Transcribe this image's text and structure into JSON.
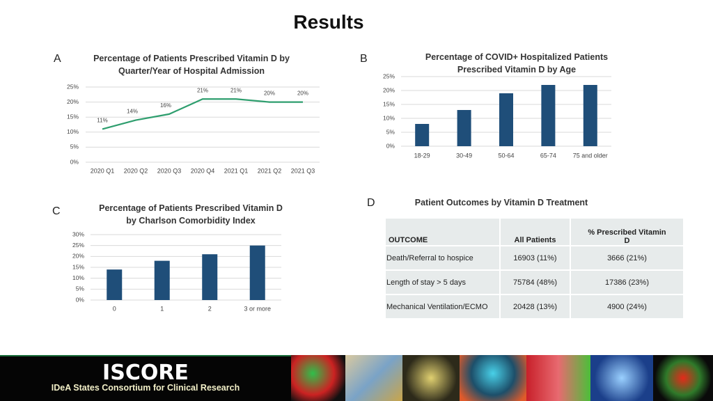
{
  "title": "Results",
  "panel_labels": [
    "A",
    "B",
    "C",
    "D"
  ],
  "chart_data": [
    {
      "type": "line",
      "title": "Percentage of Patients Prescribed Vitamin D by Quarter/Year of Hospital Admission",
      "categories": [
        "2020 Q1",
        "2020 Q2",
        "2020 Q3",
        "2020 Q4",
        "2021 Q1",
        "2021 Q2",
        "2021 Q3"
      ],
      "values": [
        11,
        14,
        16,
        21,
        21,
        20,
        20
      ],
      "value_labels": [
        "11%",
        "14%",
        "16%",
        "21%",
        "21%",
        "20%",
        "20%"
      ],
      "color": "#2e9e6e",
      "ylim": [
        0,
        25
      ],
      "yticks": [
        {
          "value": 0,
          "label": "0%"
        },
        {
          "value": 5,
          "label": "5%"
        },
        {
          "value": 10,
          "label": "10%"
        },
        {
          "value": 15,
          "label": "15%"
        },
        {
          "value": 20,
          "label": "20%"
        },
        {
          "value": 25,
          "label": "25%"
        }
      ],
      "grid": true
    },
    {
      "type": "bar",
      "title": "Percentage of COVID+ Hospitalized Patients Prescribed Vitamin D by Age",
      "categories": [
        "18-29",
        "30-49",
        "50-64",
        "65-74",
        "75 and older"
      ],
      "values": [
        8,
        13,
        19,
        22,
        22
      ],
      "color": "#1f4e79",
      "ylim": [
        0,
        25
      ],
      "yticks": [
        {
          "value": 0,
          "label": "0%"
        },
        {
          "value": 5,
          "label": "5%"
        },
        {
          "value": 10,
          "label": "10%"
        },
        {
          "value": 15,
          "label": "15%"
        },
        {
          "value": 20,
          "label": "20%"
        },
        {
          "value": 25,
          "label": "25%"
        }
      ],
      "grid": true
    },
    {
      "type": "bar",
      "title": "Percentage of Patients Prescribed Vitamin D by Charlson Comorbidity Index",
      "categories": [
        "0",
        "1",
        "2",
        "3 or more"
      ],
      "values": [
        14,
        18,
        21,
        25
      ],
      "color": "#1f4e79",
      "ylim": [
        0,
        30
      ],
      "yticks": [
        {
          "value": 0,
          "label": "0%"
        },
        {
          "value": 5,
          "label": "5%"
        },
        {
          "value": 10,
          "label": "10%"
        },
        {
          "value": 15,
          "label": "15%"
        },
        {
          "value": 20,
          "label": "20%"
        },
        {
          "value": 25,
          "label": "25%"
        },
        {
          "value": 30,
          "label": "30%"
        }
      ],
      "grid": true
    }
  ],
  "table": {
    "title": "Patient Outcomes by Vitamin D Treatment",
    "header": [
      "OUTCOME",
      "All Patients",
      "% Prescribed Vitamin D"
    ],
    "rows": [
      [
        "Death/Referral to hospice",
        "16903 (11%)",
        "3666 (21%)"
      ],
      [
        "Length of stay > 5 days",
        "75784 (48%)",
        "17386 (23%)"
      ],
      [
        "Mechanical Ventilation/ECMO",
        "20428 (13%)",
        "4900 (24%)"
      ]
    ]
  },
  "footer": {
    "title": "ISCORE",
    "subtitle": "IDeA States Consortium for Clinical Research"
  }
}
